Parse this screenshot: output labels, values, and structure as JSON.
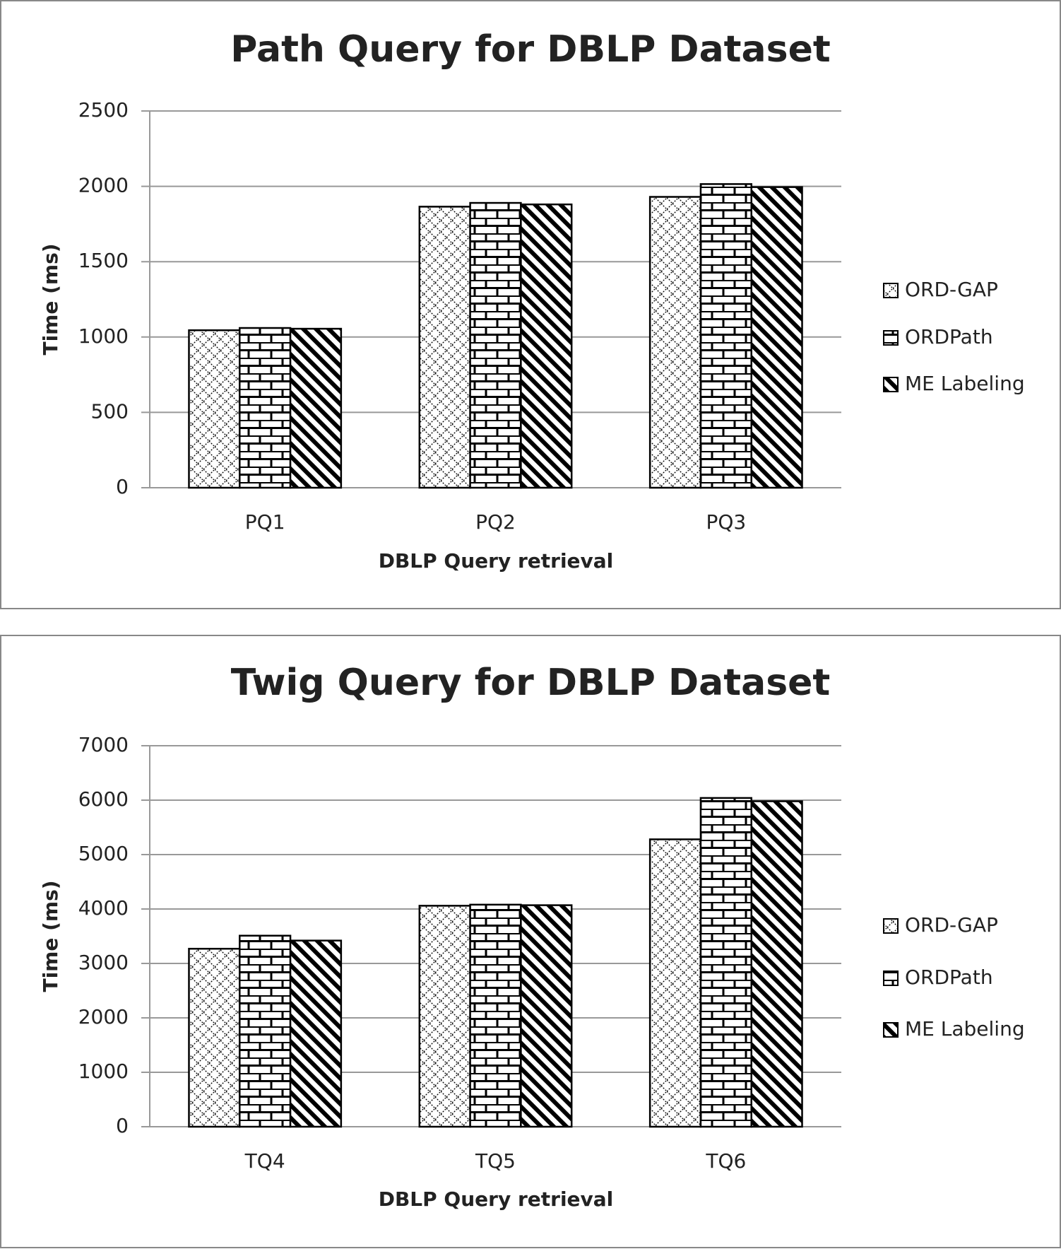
{
  "chart_data": [
    {
      "type": "bar",
      "title": "Path Query for DBLP Dataset",
      "x_label": "DBLP Query retrieval",
      "y_label": "Time (ms)",
      "categories": [
        "PQ1",
        "PQ2",
        "PQ3"
      ],
      "series": [
        {
          "name": "ORD-GAP",
          "color": "#000000",
          "values": [
            1045,
            1865,
            1930
          ]
        },
        {
          "name": "ORDPath",
          "color": "#000000",
          "values": [
            1060,
            1890,
            2015
          ]
        },
        {
          "name": "ME Labeling",
          "color": "#000000",
          "values": [
            1055,
            1880,
            1995
          ]
        }
      ],
      "ylim": [
        0,
        2500
      ],
      "yticks": [
        0,
        500,
        1000,
        1500,
        2000,
        2500
      ],
      "grid": true,
      "legend": "right"
    },
    {
      "type": "bar",
      "title": "Twig Query for DBLP Dataset",
      "x_label": "DBLP Query retrieval",
      "y_label": "Time (ms)",
      "categories": [
        "TQ4",
        "TQ5",
        "TQ6"
      ],
      "series": [
        {
          "name": "ORD-GAP",
          "color": "#000000",
          "values": [
            3270,
            4060,
            5280
          ]
        },
        {
          "name": "ORDPath",
          "color": "#000000",
          "values": [
            3510,
            4080,
            6040
          ]
        },
        {
          "name": "ME Labeling",
          "color": "#000000",
          "values": [
            3420,
            4070,
            5980
          ]
        }
      ],
      "ylim": [
        0,
        7000
      ],
      "yticks": [
        0,
        1000,
        2000,
        3000,
        4000,
        5000,
        6000,
        7000
      ],
      "grid": true,
      "legend": "right"
    }
  ]
}
